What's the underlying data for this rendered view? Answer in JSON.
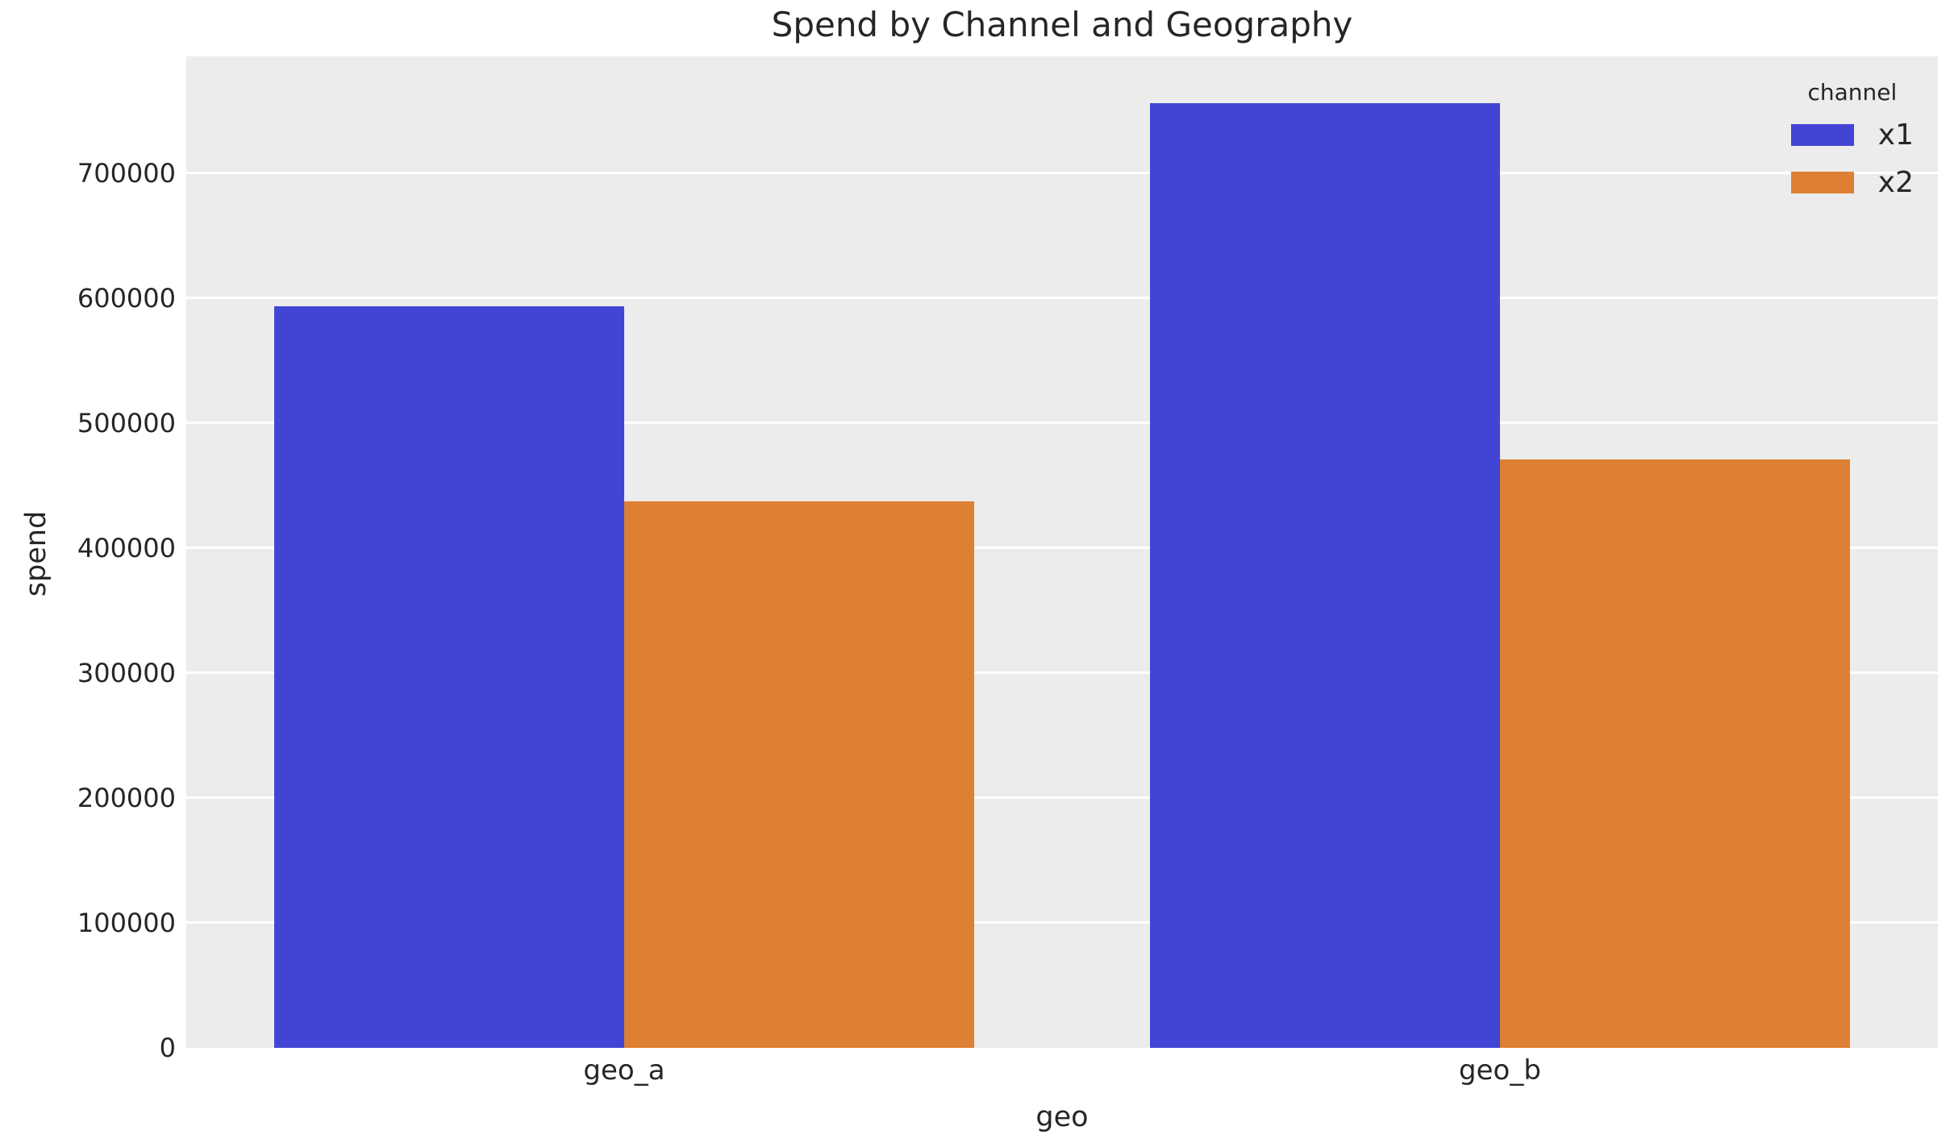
{
  "chart_data": {
    "type": "bar",
    "title": "Spend by Channel and Geography",
    "xlabel": "geo",
    "ylabel": "spend",
    "categories": [
      "geo_a",
      "geo_b"
    ],
    "series": [
      {
        "name": "x1",
        "color": "#4245d4",
        "values": [
          593500,
          756100
        ]
      },
      {
        "name": "x2",
        "color": "#de8033",
        "values": [
          437400,
          471000
        ]
      }
    ],
    "legend": {
      "title": "channel",
      "position": "upper right",
      "frame": false
    },
    "ylim": [
      0,
      793500
    ],
    "yticks": [
      0,
      100000,
      200000,
      300000,
      400000,
      500000,
      600000,
      700000
    ],
    "grid": "horizontal-white-lines",
    "colors": {
      "plot_bg": "#ececec",
      "figure_bg": "#ffffff",
      "grid": "#ffffff",
      "text": "#262626"
    }
  }
}
